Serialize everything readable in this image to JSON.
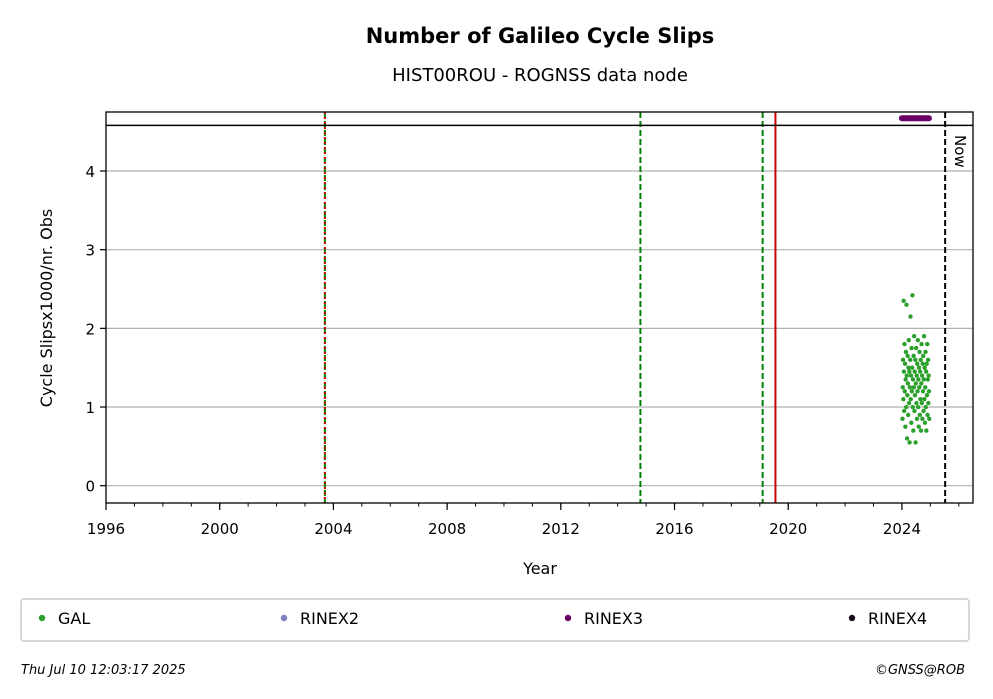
{
  "chart_data": {
    "type": "scatter",
    "title": "Number of Galileo Cycle Slips",
    "subtitle": "HIST00ROU - ROGNSS data node",
    "xlabel": "Year",
    "ylabel": "Cycle Slipsx1000/nr. Obs",
    "xlim": [
      1996,
      2026.5
    ],
    "ylim": [
      -0.22,
      4.75
    ],
    "xticks": [
      1996,
      2000,
      2004,
      2008,
      2012,
      2016,
      2020,
      2024
    ],
    "yticks": [
      0,
      1,
      2,
      3,
      4
    ],
    "grid": "horizontal",
    "ref_line_y": 4.58,
    "vlines": [
      {
        "x": 2003.7,
        "style": "dashed",
        "color": "#008000"
      },
      {
        "x": 2003.7,
        "style": "dotted",
        "color": "#cc0000"
      },
      {
        "x": 2014.8,
        "style": "dashed",
        "color": "#008000"
      },
      {
        "x": 2019.1,
        "style": "dashed",
        "color": "#008000"
      },
      {
        "x": 2019.55,
        "style": "solid",
        "color": "#cc0000"
      },
      {
        "x": 2025.52,
        "style": "dashed",
        "color": "#000000"
      }
    ],
    "now_label": "Now",
    "rinex3_marker_range": {
      "x_start": 2024.0,
      "x_end": 2024.95,
      "y": 4.67
    },
    "series": [
      {
        "name": "GAL",
        "color": "#2ca02c",
        "points": [
          [
            2024.02,
            0.85
          ],
          [
            2024.03,
            1.25
          ],
          [
            2024.04,
            1.6
          ],
          [
            2024.05,
            1.1
          ],
          [
            2024.06,
            2.35
          ],
          [
            2024.07,
            1.45
          ],
          [
            2024.08,
            0.95
          ],
          [
            2024.09,
            1.8
          ],
          [
            2024.1,
            1.2
          ],
          [
            2024.11,
            1.55
          ],
          [
            2024.12,
            0.75
          ],
          [
            2024.13,
            1.35
          ],
          [
            2024.14,
            1.7
          ],
          [
            2024.15,
            1.0
          ],
          [
            2024.16,
            2.3
          ],
          [
            2024.17,
            1.4
          ],
          [
            2024.18,
            0.6
          ],
          [
            2024.19,
            1.15
          ],
          [
            2024.2,
            1.65
          ],
          [
            2024.21,
            1.3
          ],
          [
            2024.22,
            0.9
          ],
          [
            2024.23,
            1.5
          ],
          [
            2024.24,
            1.85
          ],
          [
            2024.25,
            1.05
          ],
          [
            2024.26,
            1.45
          ],
          [
            2024.27,
            0.55
          ],
          [
            2024.28,
            1.25
          ],
          [
            2024.29,
            1.6
          ],
          [
            2024.3,
            2.15
          ],
          [
            2024.31,
            1.1
          ],
          [
            2024.32,
            1.4
          ],
          [
            2024.33,
            0.8
          ],
          [
            2024.34,
            1.75
          ],
          [
            2024.35,
            1.2
          ],
          [
            2024.36,
            1.5
          ],
          [
            2024.37,
            2.42
          ],
          [
            2024.38,
            1.0
          ],
          [
            2024.39,
            1.35
          ],
          [
            2024.4,
            0.7
          ],
          [
            2024.41,
            1.65
          ],
          [
            2024.42,
            1.25
          ],
          [
            2024.43,
            1.9
          ],
          [
            2024.44,
            0.95
          ],
          [
            2024.45,
            1.45
          ],
          [
            2024.46,
            1.15
          ],
          [
            2024.47,
            1.6
          ],
          [
            2024.48,
            0.55
          ],
          [
            2024.49,
            1.3
          ],
          [
            2024.5,
            1.75
          ],
          [
            2024.51,
            1.05
          ],
          [
            2024.52,
            1.4
          ],
          [
            2024.53,
            0.85
          ],
          [
            2024.54,
            1.55
          ],
          [
            2024.55,
            1.2
          ],
          [
            2024.56,
            1.85
          ],
          [
            2024.57,
            1.0
          ],
          [
            2024.58,
            1.35
          ],
          [
            2024.59,
            0.75
          ],
          [
            2024.6,
            1.5
          ],
          [
            2024.61,
            1.25
          ],
          [
            2024.62,
            1.7
          ],
          [
            2024.63,
            0.9
          ],
          [
            2024.64,
            1.45
          ],
          [
            2024.65,
            1.1
          ],
          [
            2024.66,
            1.6
          ],
          [
            2024.67,
            0.7
          ],
          [
            2024.68,
            1.3
          ],
          [
            2024.69,
            1.8
          ],
          [
            2024.7,
            1.05
          ],
          [
            2024.71,
            1.4
          ],
          [
            2024.72,
            0.85
          ],
          [
            2024.73,
            1.55
          ],
          [
            2024.74,
            1.2
          ],
          [
            2024.75,
            1.65
          ],
          [
            2024.76,
            0.95
          ],
          [
            2024.77,
            1.35
          ],
          [
            2024.78,
            1.9
          ],
          [
            2024.79,
            1.1
          ],
          [
            2024.8,
            1.5
          ],
          [
            2024.81,
            0.8
          ],
          [
            2024.82,
            1.25
          ],
          [
            2024.83,
            1.7
          ],
          [
            2024.84,
            1.0
          ],
          [
            2024.85,
            1.45
          ],
          [
            2024.86,
            0.7
          ],
          [
            2024.87,
            1.55
          ],
          [
            2024.88,
            1.15
          ],
          [
            2024.89,
            1.8
          ],
          [
            2024.9,
            0.9
          ],
          [
            2024.91,
            1.35
          ],
          [
            2024.92,
            1.6
          ],
          [
            2024.93,
            1.05
          ],
          [
            2024.94,
            1.4
          ],
          [
            2024.95,
            1.2
          ],
          [
            2024.96,
            0.85
          ]
        ]
      },
      {
        "name": "RINEX2",
        "color": "#8080c0",
        "points": []
      },
      {
        "name": "RINEX3",
        "color": "#6a0066",
        "points": []
      },
      {
        "name": "RINEX4",
        "color": "#1a0a1a",
        "points": []
      }
    ],
    "legend_position": "bottom"
  },
  "footer": {
    "timestamp": "Thu Jul 10 12:03:17 2025",
    "copyright": "©GNSS@ROB"
  }
}
